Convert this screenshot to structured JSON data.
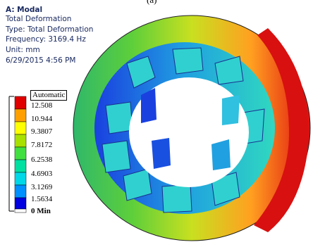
{
  "caption": "(a)",
  "header": {
    "lines": [
      "A: Modal",
      "Total Deformation",
      "Type: Total Deformation",
      "Frequency: 3169.4 Hz",
      "Unit: mm",
      "6/29/2015 4:56 PM"
    ]
  },
  "legend": {
    "title": "Automatic",
    "labels": [
      "12.508",
      "10.944",
      "9.3807",
      "7.8172",
      "6.2538",
      "4.6903",
      "3.1269",
      "1.5634",
      "0 Min"
    ]
  }
}
